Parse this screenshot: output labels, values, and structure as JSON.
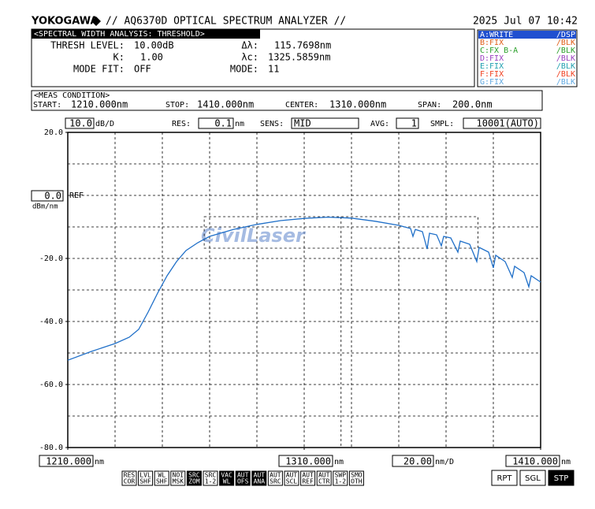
{
  "header": {
    "brand": "YOKOGAWA",
    "title": "// AQ6370D OPTICAL SPECTRUM ANALYZER //",
    "datetime": "2025 Jul 07 10:42"
  },
  "analysis": {
    "title": "<SPECTRAL WIDTH ANALYSIS: THRESHOLD>",
    "thresh_label": "THRESH LEVEL:",
    "thresh": "10.00dB",
    "k_label": "K:",
    "k": "1.00",
    "mode_fit_label": "MODE FIT:",
    "mode_fit": "OFF",
    "dl_label": "Δλ:",
    "dl": "115.7698nm",
    "lc_label": "λc:",
    "lc": "1325.5859nm",
    "mode_label": "MODE:",
    "mode": "11"
  },
  "traces": [
    {
      "name": "A:WRITE",
      "state": "/DSP",
      "color": "#ffffff",
      "active": true
    },
    {
      "name": "B:FIX",
      "state": "/BLK",
      "color": "#e0601a",
      "active": false
    },
    {
      "name": "C:FX B-A",
      "state": "/BLK",
      "color": "#2aa02a",
      "active": false
    },
    {
      "name": "D:FIX",
      "state": "/BLK",
      "color": "#9a40c0",
      "active": false
    },
    {
      "name": "E:FIX",
      "state": "/BLK",
      "color": "#20a0b0",
      "active": false
    },
    {
      "name": "F:FIX",
      "state": "/BLK",
      "color": "#f04020",
      "active": false
    },
    {
      "name": "G:FIX",
      "state": "/BLK",
      "color": "#60a8e0",
      "active": false
    }
  ],
  "meas": {
    "title": "<MEAS CONDITION>",
    "start_label": "START:",
    "start": "1210.000nm",
    "stop_label": "STOP:",
    "stop": "1410.000nm",
    "center_label": "CENTER:",
    "center": "1310.000nm",
    "span_label": "SPAN:",
    "span": "200.0nm"
  },
  "settings": {
    "scale": "10.0",
    "scale_unit": "dB/D",
    "res_label": "RES:",
    "res": "0.1",
    "res_unit": "nm",
    "sens_label": "SENS:",
    "sens": "MID",
    "avg_label": "AVG:",
    "avg": "1",
    "smpl_label": "SMPL:",
    "smpl": "10001(AUTO)",
    "ref": "0.0",
    "ref_label": "REF",
    "ref_unit": "dBm/nm"
  },
  "bottom": {
    "start_unit": "nm",
    "center_unit": "nm",
    "span": "20.00",
    "span_unit": "nm/D",
    "stop_unit": "nm"
  },
  "watermark": "CivilLaser",
  "softkeys": [
    {
      "lines": [
        "RES",
        "COR"
      ],
      "active": false
    },
    {
      "lines": [
        "LVL",
        "SHF"
      ],
      "active": false
    },
    {
      "lines": [
        "WL",
        "SHF"
      ],
      "active": false
    },
    {
      "lines": [
        "NOI",
        "MSK"
      ],
      "active": false
    },
    {
      "lines": [
        "SRC",
        "ZOM"
      ],
      "active": true
    },
    {
      "lines": [
        "SRC",
        "1-2"
      ],
      "active": false
    },
    {
      "lines": [
        "VAC",
        "WL"
      ],
      "active": true
    },
    {
      "lines": [
        "AUT",
        "OFS"
      ],
      "active": true
    },
    {
      "lines": [
        "AUT",
        "ANA"
      ],
      "active": true
    },
    {
      "lines": [
        "AUT",
        "SRC"
      ],
      "active": false
    },
    {
      "lines": [
        "AUT",
        "SCL"
      ],
      "active": false
    },
    {
      "lines": [
        "AUT",
        "REF"
      ],
      "active": false
    },
    {
      "lines": [
        "AUT",
        "CTR"
      ],
      "active": false
    },
    {
      "lines": [
        "SWP",
        "1-2"
      ],
      "active": false
    },
    {
      "lines": [
        "SMO",
        "OTH"
      ],
      "active": false
    }
  ],
  "runkeys": [
    {
      "label": "RPT",
      "active": false
    },
    {
      "label": "SGL",
      "active": false
    },
    {
      "label": "STP",
      "active": true
    }
  ],
  "chart_data": {
    "type": "line",
    "color": "#1f6fc8",
    "x": [
      1210,
      1220,
      1230,
      1236,
      1240,
      1244,
      1248,
      1252,
      1256,
      1260,
      1265,
      1270,
      1280,
      1290,
      1300,
      1310,
      1320,
      1330,
      1340,
      1350,
      1355,
      1356,
      1357,
      1360,
      1362,
      1363,
      1366,
      1368,
      1369,
      1372,
      1375,
      1376,
      1380,
      1383,
      1384,
      1388,
      1390,
      1391,
      1395,
      1398,
      1399,
      1403,
      1405,
      1406,
      1410
    ],
    "values": [
      -52.3,
      -49.5,
      -47,
      -45,
      -42.5,
      -37,
      -31,
      -25.5,
      -21,
      -17.5,
      -15,
      -13,
      -10.8,
      -9.2,
      -8,
      -7.3,
      -6.9,
      -7.2,
      -8.2,
      -9.5,
      -10.5,
      -13,
      -10.8,
      -11.5,
      -17,
      -12,
      -12.5,
      -16,
      -13,
      -13.5,
      -18,
      -14.5,
      -15.5,
      -21,
      -16.5,
      -18,
      -23,
      -19,
      -21,
      -26,
      -22.5,
      -24.5,
      -29,
      -25.5,
      -27.5
    ],
    "xlim": [
      1210,
      1410
    ],
    "ylim": [
      -80,
      20
    ],
    "yticks": [
      {
        "value": 20,
        "label": "20.0"
      },
      {
        "value": -20,
        "label": "-20.0"
      },
      {
        "value": -40,
        "label": "-40.0"
      },
      {
        "value": -60,
        "label": "-60.0"
      },
      {
        "value": -80,
        "label": "-80.0"
      }
    ],
    "xticks": [
      {
        "value": 1210,
        "label": "1210.000"
      },
      {
        "value": 1310,
        "label": "1310.000"
      },
      {
        "value": 1410,
        "label": "1410.000"
      }
    ]
  }
}
